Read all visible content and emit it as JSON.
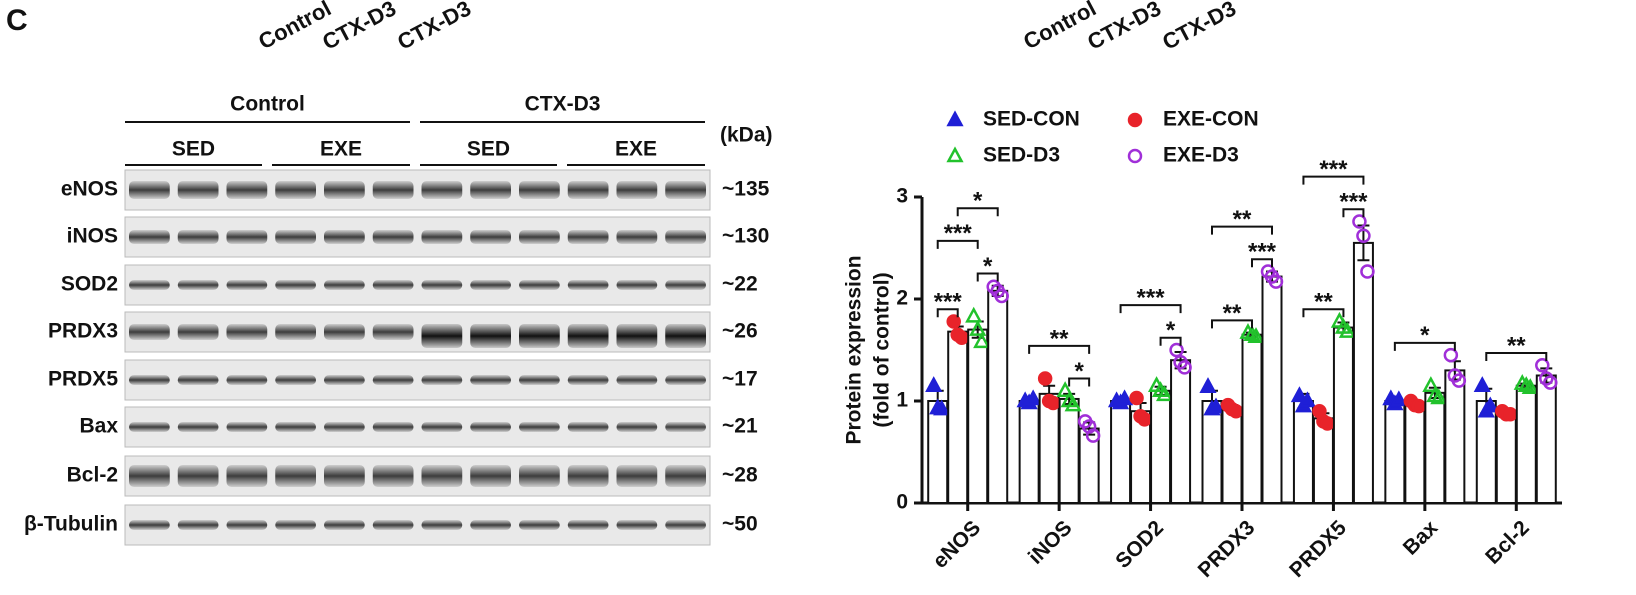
{
  "panel_label": "C",
  "top_labels": [
    "Control",
    "CTX-D3",
    "CTX-D3",
    "Control",
    "CTX-D3",
    "CTX-D3"
  ],
  "blot": {
    "groups": [
      "Control",
      "CTX-D3"
    ],
    "subgroups": [
      "SED",
      "EXE",
      "SED",
      "EXE"
    ],
    "kda_label": "(kDa)",
    "rows": [
      {
        "name": "eNOS",
        "kda": "~135"
      },
      {
        "name": "iNOS",
        "kda": "~130"
      },
      {
        "name": "SOD2",
        "kda": "~22"
      },
      {
        "name": "PRDX3",
        "kda": "~26"
      },
      {
        "name": "PRDX5",
        "kda": "~17"
      },
      {
        "name": "Bax",
        "kda": "~21"
      },
      {
        "name": "Bcl-2",
        "kda": "~28"
      },
      {
        "name": "β-Tubulin",
        "kda": "~50"
      }
    ]
  },
  "chart_data": {
    "type": "bar",
    "y_label": [
      "Protein expression",
      "(fold of control)"
    ],
    "categories": [
      "eNOS",
      "iNOS",
      "SOD2",
      "PRDX3",
      "PRDX5",
      "Bax",
      "Bcl-2"
    ],
    "series": [
      {
        "name": "SED-CON",
        "color": "#1f1fd6",
        "marker": "triangle",
        "filled": true,
        "values": [
          1.0,
          1.0,
          1.0,
          1.0,
          1.0,
          1.0,
          1.0
        ],
        "errors": [
          0.1,
          0.04,
          0.03,
          0.1,
          0.07,
          0.04,
          0.12
        ],
        "points": [
          [
            1.15,
            0.93,
            0.92
          ],
          [
            1.0,
            0.98,
            1.02
          ],
          [
            1.0,
            0.98,
            1.02
          ],
          [
            1.14,
            0.92,
            0.94
          ],
          [
            1.05,
            0.95,
            1.0
          ],
          [
            1.02,
            0.97,
            1.01
          ],
          [
            1.15,
            0.9,
            0.95
          ]
        ]
      },
      {
        "name": "EXE-CON",
        "color": "#e8232a",
        "marker": "circle",
        "filled": true,
        "values": [
          1.68,
          1.07,
          0.9,
          0.93,
          0.83,
          0.97,
          0.88
        ],
        "errors": [
          0.05,
          0.08,
          0.08,
          0.03,
          0.05,
          0.03,
          0.02
        ],
        "points": [
          [
            1.78,
            1.65,
            1.62
          ],
          [
            1.22,
            1.0,
            0.98
          ],
          [
            1.03,
            0.85,
            0.82
          ],
          [
            0.96,
            0.92,
            0.9
          ],
          [
            0.9,
            0.8,
            0.78
          ],
          [
            1.0,
            0.96,
            0.95
          ],
          [
            0.9,
            0.87,
            0.87
          ]
        ]
      },
      {
        "name": "SED-D3",
        "color": "#22c22c",
        "marker": "triangle",
        "filled": false,
        "values": [
          1.7,
          1.02,
          1.1,
          1.65,
          1.72,
          1.08,
          1.15
        ],
        "errors": [
          0.08,
          0.05,
          0.04,
          0.02,
          0.05,
          0.05,
          0.02
        ],
        "points": [
          [
            1.83,
            1.7,
            1.58
          ],
          [
            1.1,
            1.0,
            0.96
          ],
          [
            1.15,
            1.1,
            1.06
          ],
          [
            1.67,
            1.65,
            1.63
          ],
          [
            1.78,
            1.72,
            1.68
          ],
          [
            1.15,
            1.05,
            1.03
          ],
          [
            1.17,
            1.15,
            1.13
          ]
        ]
      },
      {
        "name": "EXE-D3",
        "color": "#a02fd8",
        "marker": "circle",
        "filled": false,
        "values": [
          2.08,
          0.73,
          1.4,
          2.22,
          2.55,
          1.3,
          1.25
        ],
        "errors": [
          0.05,
          0.06,
          0.08,
          0.05,
          0.17,
          0.09,
          0.07
        ],
        "points": [
          [
            2.12,
            2.08,
            2.03
          ],
          [
            0.8,
            0.75,
            0.66
          ],
          [
            1.5,
            1.38,
            1.33
          ],
          [
            2.27,
            2.22,
            2.17
          ],
          [
            2.76,
            2.62,
            2.27
          ],
          [
            1.45,
            1.25,
            1.2
          ],
          [
            1.35,
            1.22,
            1.18
          ]
        ]
      }
    ],
    "ylim": [
      0,
      3
    ],
    "yticks": [
      0,
      1,
      2,
      3
    ],
    "legend": "top-left",
    "annotations": [
      {
        "category": 0,
        "from": 0,
        "to": 1,
        "label": "***"
      },
      {
        "category": 0,
        "from": 2,
        "to": 3,
        "label": "*"
      },
      {
        "category": 0,
        "from": 0,
        "to": 2,
        "label": "***"
      },
      {
        "category": 0,
        "from": 1,
        "to": 3,
        "label": "*"
      },
      {
        "category": 1,
        "from": 2,
        "to": 3,
        "label": "*"
      },
      {
        "category": 1,
        "from": 0,
        "to": 3,
        "label": "**"
      },
      {
        "category": 2,
        "from": 2,
        "to": 3,
        "label": "*"
      },
      {
        "category": 2,
        "from": 0,
        "to": 3,
        "label": "***"
      },
      {
        "category": 3,
        "from": 0,
        "to": 2,
        "label": "**"
      },
      {
        "category": 3,
        "from": 2,
        "to": 3,
        "label": "***"
      },
      {
        "category": 3,
        "from": 0,
        "to": 3,
        "label": "**"
      },
      {
        "category": 4,
        "from": 0,
        "to": 2,
        "label": "**"
      },
      {
        "category": 4,
        "from": 2,
        "to": 3,
        "label": "***"
      },
      {
        "category": 4,
        "from": 0,
        "to": 3,
        "label": "***"
      },
      {
        "category": 5,
        "from": 0,
        "to": 3,
        "label": "*"
      },
      {
        "category": 6,
        "from": 0,
        "to": 3,
        "label": "**"
      }
    ]
  }
}
